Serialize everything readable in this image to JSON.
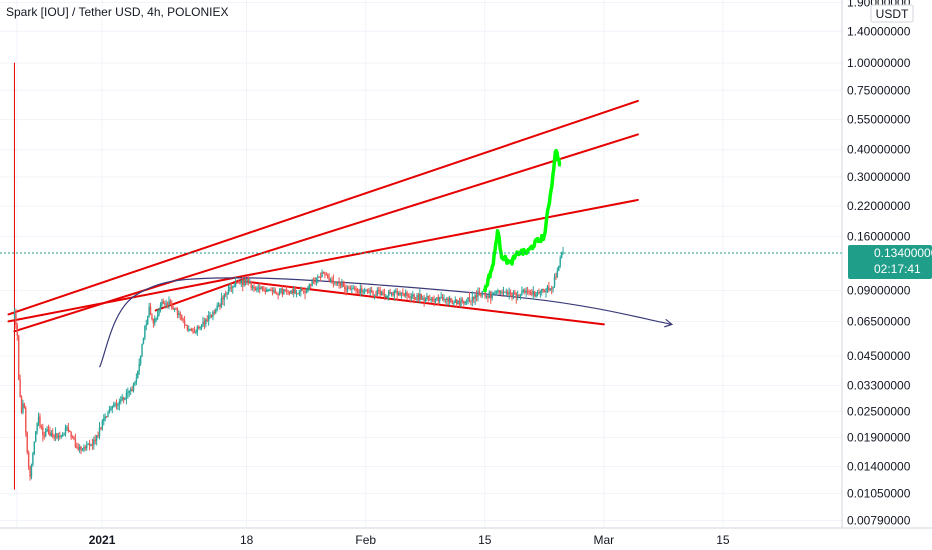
{
  "header": {
    "title": "Spark [IOU] / Tether USD, 4h, POLONIEX"
  },
  "colors": {
    "up": "#26a69a",
    "down": "#ef5350",
    "trend": "#e60000",
    "arc": "#3b3a78",
    "highlight": "#00ff00",
    "badge": "#1f9e89",
    "grid": "#f0f3fa",
    "axis_text": "#131722"
  },
  "chart_data": {
    "type": "candlestick",
    "title": "Spark [IOU] / Tether USD, 4h, POLONIEX",
    "currency_label": "USDT",
    "y_scale": "log",
    "ylim": [
      0.0073,
      1.95
    ],
    "y_ticks": [
      1.9,
      1.4,
      1.0,
      0.75,
      0.55,
      0.4,
      0.3,
      0.22,
      0.16,
      0.09,
      0.065,
      0.045,
      0.033,
      0.025,
      0.019,
      0.014,
      0.0105,
      0.0079
    ],
    "y_tick_labels": [
      "1.90000000",
      "1.40000000",
      "1.00000000",
      "0.75000000",
      "0.55000000",
      "0.40000000",
      "0.30000000",
      "0.22000000",
      "0.16000000",
      "0.09000000",
      "0.06500000",
      "0.04500000",
      "0.03300000",
      "0.02500000",
      "0.01900000",
      "0.01400000",
      "0.01050000",
      "0.00790000"
    ],
    "x_ticks": [
      {
        "day": -10,
        "label": "",
        "bold": false
      },
      {
        "day": 0,
        "label": "2021",
        "bold": true
      },
      {
        "day": 17,
        "label": "18",
        "bold": false
      },
      {
        "day": 31,
        "label": "Feb",
        "bold": false
      },
      {
        "day": 45,
        "label": "15",
        "bold": false
      },
      {
        "day": 59,
        "label": "Mar",
        "bold": false
      },
      {
        "day": 73,
        "label": "15",
        "bold": false
      },
      {
        "day": 87,
        "label": "",
        "bold": false
      }
    ],
    "last_price": 0.134,
    "last_price_label": "0.13400000",
    "countdown_label": "02:17:41",
    "price_path": [
      [
        -10.3,
        0.07
      ],
      [
        -10.0,
        0.06
      ],
      [
        -9.8,
        0.035
      ],
      [
        -9.5,
        0.024
      ],
      [
        -9.2,
        0.028
      ],
      [
        -8.8,
        0.016
      ],
      [
        -8.5,
        0.012
      ],
      [
        -8.0,
        0.018
      ],
      [
        -7.5,
        0.024
      ],
      [
        -7.0,
        0.02
      ],
      [
        -6.0,
        0.02
      ],
      [
        -5.0,
        0.019
      ],
      [
        -4.0,
        0.021
      ],
      [
        -3.0,
        0.017
      ],
      [
        -2.0,
        0.017
      ],
      [
        -1.0,
        0.018
      ],
      [
        0.0,
        0.022
      ],
      [
        1.0,
        0.026
      ],
      [
        2.0,
        0.028
      ],
      [
        3.0,
        0.03
      ],
      [
        4.0,
        0.034
      ],
      [
        5.0,
        0.06
      ],
      [
        5.5,
        0.075
      ],
      [
        6.0,
        0.065
      ],
      [
        6.5,
        0.07
      ],
      [
        7.0,
        0.08
      ],
      [
        8.0,
        0.078
      ],
      [
        9.0,
        0.07
      ],
      [
        10.0,
        0.06
      ],
      [
        11.0,
        0.058
      ],
      [
        12.0,
        0.065
      ],
      [
        13.0,
        0.07
      ],
      [
        14.0,
        0.08
      ],
      [
        15.0,
        0.092
      ],
      [
        16.0,
        0.097
      ],
      [
        17.0,
        0.1
      ],
      [
        18.0,
        0.09
      ],
      [
        19.0,
        0.092
      ],
      [
        20.0,
        0.09
      ],
      [
        22.0,
        0.089
      ],
      [
        24.0,
        0.09
      ],
      [
        25.0,
        0.1
      ],
      [
        26.0,
        0.11
      ],
      [
        27.0,
        0.098
      ],
      [
        28.0,
        0.095
      ],
      [
        30.0,
        0.09
      ],
      [
        32.0,
        0.088
      ],
      [
        34.0,
        0.087
      ],
      [
        36.0,
        0.085
      ],
      [
        38.0,
        0.083
      ],
      [
        40.0,
        0.082
      ],
      [
        42.0,
        0.08
      ],
      [
        44.0,
        0.085
      ],
      [
        45.0,
        0.09
      ],
      [
        46.0,
        0.12
      ],
      [
        46.5,
        0.17
      ],
      [
        47.0,
        0.13
      ],
      [
        48.0,
        0.12
      ],
      [
        49.0,
        0.135
      ],
      [
        50.0,
        0.135
      ],
      [
        51.0,
        0.15
      ],
      [
        52.0,
        0.16
      ],
      [
        53.0,
        0.3
      ],
      [
        53.3,
        0.4
      ],
      [
        53.8,
        0.35
      ],
      [
        54.0,
        0.32
      ],
      [
        55.0,
        0.3
      ]
    ],
    "price_path_note_removed": true,
    "recent_path": [
      [
        45.0,
        0.085
      ],
      [
        46.0,
        0.087
      ],
      [
        47.0,
        0.088
      ],
      [
        48.0,
        0.086
      ],
      [
        49.0,
        0.087
      ],
      [
        50.0,
        0.088
      ],
      [
        51.0,
        0.087
      ],
      [
        52.0,
        0.09
      ],
      [
        53.0,
        0.095
      ],
      [
        54.0,
        0.13
      ],
      [
        54.3,
        0.145
      ]
    ],
    "drawings": {
      "upper_trendline": [
        [
          -11.0,
          0.07
        ],
        [
          63.0,
          0.67
        ]
      ],
      "middle_trendline": [
        [
          -11.0,
          0.065
        ],
        [
          63.0,
          0.235
        ]
      ],
      "lower_trendline": [
        [
          -10.3,
          0.0585
        ],
        [
          63.0,
          0.47
        ]
      ],
      "upper_resistance_from_peak": [
        [
          6.3,
          0.073
        ],
        [
          17.0,
          0.103
        ]
      ],
      "falling_support": [
        [
          16.0,
          0.1
        ],
        [
          59.0,
          0.063
        ]
      ],
      "arc": [
        [
          -0.3,
          0.04
        ],
        [
          4.0,
          0.086
        ],
        [
          17.0,
          0.103
        ],
        [
          50.0,
          0.083
        ],
        [
          67.0,
          0.063
        ]
      ],
      "vertical_marker": [
        [
          -10.3,
          0.011
        ],
        [
          -10.3,
          1.0
        ]
      ]
    }
  }
}
